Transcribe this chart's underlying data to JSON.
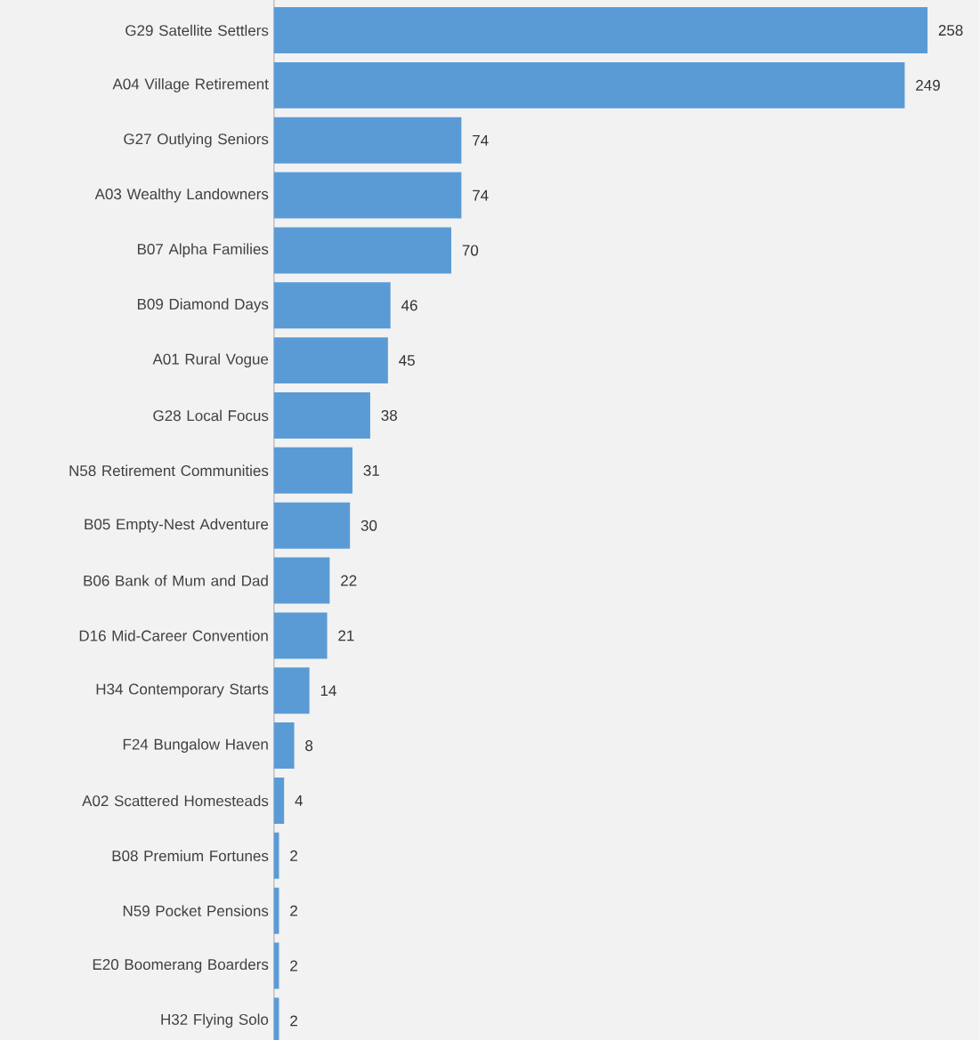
{
  "chart_data": {
    "type": "bar",
    "orientation": "horizontal",
    "color": "#5b9bd5",
    "data_labels": true,
    "categories": [
      "G29 Satellite Settlers",
      "A04 Village Retirement",
      "G27 Outlying Seniors",
      "A03 Wealthy Landowners",
      "B07 Alpha Families",
      "B09 Diamond Days",
      "A01 Rural Vogue",
      "G28 Local Focus",
      "N58 Retirement Communities",
      "B05 Empty-Nest Adventure",
      "B06 Bank of Mum and Dad",
      "D16 Mid-Career Convention",
      "H34 Contemporary Starts",
      "F24 Bungalow Haven",
      "A02 Scattered Homesteads",
      "B08 Premium Fortunes",
      "N59 Pocket Pensions",
      "E20 Boomerang Boarders",
      "H32 Flying Solo"
    ],
    "values": [
      258,
      249,
      74,
      74,
      70,
      46,
      45,
      38,
      31,
      30,
      22,
      21,
      14,
      8,
      4,
      2,
      2,
      2,
      2
    ]
  }
}
